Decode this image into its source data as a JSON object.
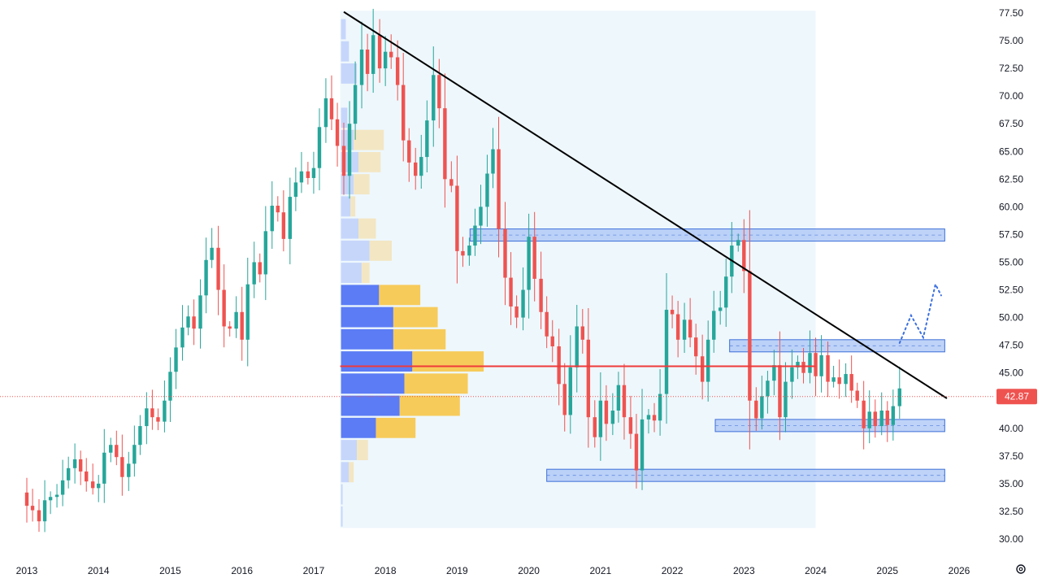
{
  "colors": {
    "up": "#26a69a",
    "down": "#ef5350",
    "zone_fill": "#a9c4f5",
    "zone_stroke": "#3d6fd9",
    "vp_range_bg": "#eef7fc",
    "vp_up": "#5b7cf5",
    "vp_down": "#f7cb5a",
    "vp_up_light": "#c6d6fb",
    "vp_down_light": "#f3e6c3",
    "poc": "#ef3a3a",
    "trendline": "#000000",
    "projection": "#3a6fe0",
    "last_price": "#ef5350",
    "axis_text": "#131722"
  },
  "chart_data": {
    "type": "candlestick",
    "timeframe": "monthly",
    "ylim": [
      30,
      77.5
    ],
    "xlim": [
      2012.8,
      2026.2
    ],
    "y_ticks": [
      "30.00",
      "32.50",
      "35.00",
      "37.50",
      "40.00",
      "42.50",
      "45.00",
      "47.50",
      "50.00",
      "52.50",
      "55.00",
      "57.50",
      "60.00",
      "62.50",
      "65.00",
      "67.50",
      "70.00",
      "72.50",
      "75.00",
      "77.50"
    ],
    "x_ticks": [
      "2013",
      "2014",
      "2015",
      "2016",
      "2017",
      "2018",
      "2019",
      "2020",
      "2021",
      "2022",
      "2023",
      "2024",
      "2025",
      "2026"
    ],
    "last_price": "42.87",
    "candles_close_path": [
      [
        2012.83,
        34.2
      ],
      [
        2013.0,
        33.0
      ],
      [
        2013.08,
        32.6
      ],
      [
        2013.17,
        31.6
      ],
      [
        2013.25,
        33.5
      ],
      [
        2013.33,
        33.8
      ],
      [
        2013.42,
        34.0
      ],
      [
        2013.5,
        35.3
      ],
      [
        2013.58,
        36.4
      ],
      [
        2013.67,
        37.2
      ],
      [
        2013.75,
        36.1
      ],
      [
        2013.83,
        35.2
      ],
      [
        2013.92,
        34.6
      ],
      [
        2014.0,
        35.0
      ],
      [
        2014.08,
        37.8
      ],
      [
        2014.17,
        38.5
      ],
      [
        2014.25,
        37.4
      ],
      [
        2014.33,
        35.6
      ],
      [
        2014.42,
        36.8
      ],
      [
        2014.5,
        38.5
      ],
      [
        2014.58,
        40.2
      ],
      [
        2014.67,
        41.8
      ],
      [
        2014.75,
        41.0
      ],
      [
        2014.83,
        40.6
      ],
      [
        2014.92,
        42.5
      ],
      [
        2015.0,
        45.1
      ],
      [
        2015.08,
        47.3
      ],
      [
        2015.17,
        49.1
      ],
      [
        2015.25,
        50.1
      ],
      [
        2015.33,
        49.0
      ],
      [
        2015.42,
        52.0
      ],
      [
        2015.5,
        55.2
      ],
      [
        2015.58,
        56.3
      ],
      [
        2015.67,
        52.5
      ],
      [
        2015.75,
        49.2
      ],
      [
        2015.83,
        49.0
      ],
      [
        2015.92,
        50.5
      ],
      [
        2016.0,
        48.0
      ],
      [
        2016.08,
        53.0
      ],
      [
        2016.17,
        55.0
      ],
      [
        2016.25,
        53.9
      ],
      [
        2016.33,
        57.8
      ],
      [
        2016.42,
        60.1
      ],
      [
        2016.5,
        59.5
      ],
      [
        2016.58,
        57.1
      ],
      [
        2016.67,
        60.9
      ],
      [
        2016.75,
        62.2
      ],
      [
        2016.83,
        63.2
      ],
      [
        2016.92,
        62.6
      ],
      [
        2017.0,
        63.5
      ],
      [
        2017.08,
        67.2
      ],
      [
        2017.17,
        69.8
      ],
      [
        2017.25,
        67.9
      ],
      [
        2017.33,
        65.5
      ],
      [
        2017.42,
        62.8
      ],
      [
        2017.5,
        67.5
      ],
      [
        2017.58,
        71.0
      ],
      [
        2017.67,
        74.2
      ],
      [
        2017.75,
        72.0
      ],
      [
        2017.83,
        75.5
      ],
      [
        2017.92,
        72.5
      ],
      [
        2018.0,
        74.0
      ],
      [
        2018.08,
        73.5
      ],
      [
        2018.17,
        71.0
      ],
      [
        2018.25,
        66.0
      ],
      [
        2018.33,
        64.0
      ],
      [
        2018.42,
        62.8
      ],
      [
        2018.5,
        64.5
      ],
      [
        2018.58,
        67.8
      ],
      [
        2018.67,
        71.9
      ],
      [
        2018.75,
        68.9
      ],
      [
        2018.83,
        62.5
      ],
      [
        2018.92,
        61.9
      ],
      [
        2019.0,
        56.0
      ],
      [
        2019.08,
        55.6
      ],
      [
        2019.17,
        56.5
      ],
      [
        2019.25,
        58.3
      ],
      [
        2019.33,
        60.0
      ],
      [
        2019.42,
        63.0
      ],
      [
        2019.5,
        65.2
      ],
      [
        2019.58,
        58.0
      ],
      [
        2019.67,
        53.6
      ],
      [
        2019.75,
        51.0
      ],
      [
        2019.83,
        50.0
      ],
      [
        2019.92,
        52.5
      ],
      [
        2020.0,
        57.3
      ],
      [
        2020.08,
        53.5
      ],
      [
        2020.17,
        50.5
      ],
      [
        2020.25,
        48.3
      ],
      [
        2020.33,
        47.4
      ],
      [
        2020.42,
        44.0
      ],
      [
        2020.5,
        41.2
      ],
      [
        2020.58,
        45.5
      ],
      [
        2020.67,
        49.2
      ],
      [
        2020.75,
        48.0
      ],
      [
        2020.83,
        41.0
      ],
      [
        2020.92,
        39.2
      ],
      [
        2021.0,
        42.5
      ],
      [
        2021.08,
        40.4
      ],
      [
        2021.17,
        41.6
      ],
      [
        2021.25,
        43.9
      ],
      [
        2021.33,
        41.0
      ],
      [
        2021.42,
        39.5
      ],
      [
        2021.5,
        36.2
      ],
      [
        2021.58,
        40.8
      ],
      [
        2021.67,
        41.2
      ],
      [
        2021.75,
        40.7
      ],
      [
        2021.83,
        43.1
      ],
      [
        2021.92,
        50.7
      ],
      [
        2022.0,
        50.3
      ],
      [
        2022.08,
        48.0
      ],
      [
        2022.17,
        49.8
      ],
      [
        2022.25,
        48.2
      ],
      [
        2022.33,
        46.5
      ],
      [
        2022.42,
        44.2
      ],
      [
        2022.5,
        48.0
      ],
      [
        2022.58,
        50.6
      ],
      [
        2022.67,
        50.9
      ],
      [
        2022.75,
        53.7
      ],
      [
        2022.83,
        56.5
      ],
      [
        2022.92,
        57.0
      ],
      [
        2023.0,
        54.2
      ],
      [
        2023.08,
        42.5
      ],
      [
        2023.17,
        40.9
      ],
      [
        2023.25,
        42.9
      ],
      [
        2023.33,
        44.3
      ],
      [
        2023.42,
        45.7
      ],
      [
        2023.5,
        41.0
      ],
      [
        2023.58,
        44.2
      ],
      [
        2023.67,
        45.5
      ],
      [
        2023.75,
        46.0
      ],
      [
        2023.83,
        45.0
      ],
      [
        2023.92,
        46.8
      ],
      [
        2024.0,
        44.7
      ],
      [
        2024.08,
        46.6
      ],
      [
        2024.17,
        44.2
      ],
      [
        2024.25,
        44.6
      ],
      [
        2024.33,
        44.0
      ],
      [
        2024.42,
        44.9
      ],
      [
        2024.5,
        43.4
      ],
      [
        2024.58,
        42.5
      ],
      [
        2024.67,
        40.0
      ],
      [
        2024.75,
        41.5
      ],
      [
        2024.83,
        40.2
      ],
      [
        2024.92,
        41.6
      ],
      [
        2025.0,
        40.3
      ],
      [
        2025.08,
        42.0
      ],
      [
        2025.17,
        43.6
      ]
    ],
    "zones": [
      {
        "x1": 2019.18,
        "x2": 2025.8,
        "y1": 56.9,
        "y2": 58.0
      },
      {
        "x1": 2022.8,
        "x2": 2025.8,
        "y1": 46.9,
        "y2": 48.0
      },
      {
        "x1": 2022.6,
        "x2": 2025.8,
        "y1": 39.7,
        "y2": 40.8
      },
      {
        "x1": 2020.25,
        "x2": 2025.8,
        "y1": 35.2,
        "y2": 36.3
      }
    ],
    "volume_profile_range": {
      "x1": 2017.37,
      "x2": 2024.0,
      "y1": 31.0,
      "y2": 77.7
    },
    "volume_profile_rows": [
      {
        "y": 76.0,
        "up": 0.03,
        "down": 0.02,
        "hi": false
      },
      {
        "y": 74.0,
        "up": 0.05,
        "down": 0.04,
        "hi": false
      },
      {
        "y": 72.0,
        "up": 0.1,
        "down": 0.06,
        "hi": false
      },
      {
        "y": 68.0,
        "up": 0.04,
        "down": 0.03,
        "hi": false
      },
      {
        "y": 66.0,
        "up": 0.08,
        "down": 0.27,
        "hi": false
      },
      {
        "y": 64.0,
        "up": 0.11,
        "down": 0.25,
        "hi": false
      },
      {
        "y": 62.0,
        "up": 0.08,
        "down": 0.18,
        "hi": false
      },
      {
        "y": 60.0,
        "up": 0.06,
        "down": 0.09,
        "hi": false
      },
      {
        "y": 58.0,
        "up": 0.11,
        "down": 0.22,
        "hi": false
      },
      {
        "y": 56.0,
        "up": 0.18,
        "down": 0.32,
        "hi": false
      },
      {
        "y": 54.0,
        "up": 0.13,
        "down": 0.18,
        "hi": false
      },
      {
        "y": 52.0,
        "up": 0.24,
        "down": 0.5,
        "hi": true
      },
      {
        "y": 50.0,
        "up": 0.33,
        "down": 0.61,
        "hi": true
      },
      {
        "y": 48.0,
        "up": 0.33,
        "down": 0.66,
        "hi": true
      },
      {
        "y": 46.0,
        "up": 0.45,
        "down": 0.9,
        "hi": true
      },
      {
        "y": 44.0,
        "up": 0.4,
        "down": 0.8,
        "hi": true
      },
      {
        "y": 42.0,
        "up": 0.37,
        "down": 0.75,
        "hi": true
      },
      {
        "y": 40.0,
        "up": 0.22,
        "down": 0.47,
        "hi": true
      },
      {
        "y": 38.0,
        "up": 0.1,
        "down": 0.17,
        "hi": false
      },
      {
        "y": 36.0,
        "up": 0.05,
        "down": 0.08,
        "hi": false
      },
      {
        "y": 34.0,
        "up": 0.01,
        "down": 0.0,
        "hi": false
      },
      {
        "y": 32.0,
        "up": 0.01,
        "down": 0.0,
        "hi": false
      }
    ],
    "poc_line": {
      "x1": 2017.37,
      "x2": 2024.0,
      "y": 45.6
    },
    "trendline": {
      "x1": 2017.42,
      "y1": 77.6,
      "x2": 2025.83,
      "y2": 42.7
    },
    "projection_path": [
      [
        2025.17,
        47.7
      ],
      [
        2025.33,
        50.2
      ],
      [
        2025.5,
        48.2
      ],
      [
        2025.67,
        53.0
      ],
      [
        2025.75,
        52.0
      ]
    ]
  }
}
